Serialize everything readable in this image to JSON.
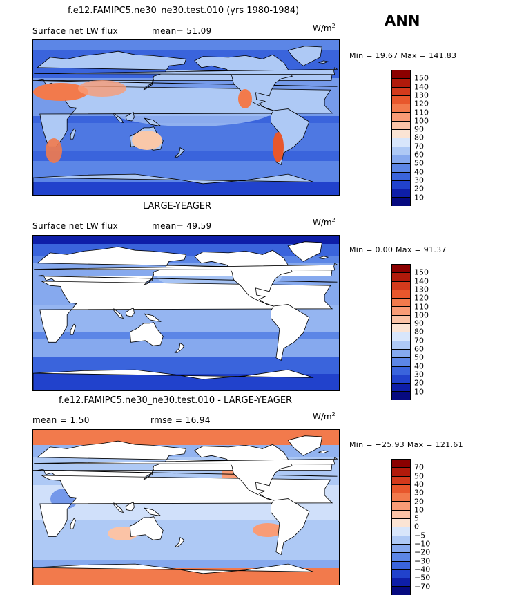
{
  "season": "ANN",
  "panels": [
    {
      "title": "f.e12.FAMIPC5.ne30_ne30.test.010 (yrs 1980-1984)",
      "sub_left": "Surface net LW flux",
      "sub_right": "mean=  51.09",
      "units": "W/m",
      "units_sup": "2",
      "minmax": "Min =  19.67 Max = 141.83",
      "legend_labels": [
        "150",
        "140",
        "130",
        "120",
        "110",
        "100",
        "90",
        "80",
        "70",
        "60",
        "50",
        "40",
        "30",
        "20",
        "10"
      ],
      "legend_colors": [
        "#8b0000",
        "#b11a0b",
        "#d33a1c",
        "#e8572c",
        "#f27a4c",
        "#f99c76",
        "#fbc3a6",
        "#fbe4d4",
        "#d8e6fb",
        "#aec9f5",
        "#86a9ee",
        "#5c86e6",
        "#3a64dc",
        "#2142cc",
        "#0e1ea8",
        "#060a80"
      ],
      "fill_mode": "model"
    },
    {
      "title": "LARGE-YEAGER",
      "sub_left": "Surface net LW flux",
      "sub_right": "mean=  49.59",
      "units": "W/m",
      "units_sup": "2",
      "minmax": "Min =   0.00 Max =  91.37",
      "legend_labels": [
        "150",
        "140",
        "130",
        "120",
        "110",
        "100",
        "90",
        "80",
        "70",
        "60",
        "50",
        "40",
        "30",
        "20",
        "10"
      ],
      "legend_colors": [
        "#8b0000",
        "#b11a0b",
        "#d33a1c",
        "#e8572c",
        "#f27a4c",
        "#f99c76",
        "#fbc3a6",
        "#fbe4d4",
        "#d8e6fb",
        "#aec9f5",
        "#86a9ee",
        "#5c86e6",
        "#3a64dc",
        "#2142cc",
        "#0e1ea8",
        "#060a80"
      ],
      "fill_mode": "obs"
    },
    {
      "title": "f.e12.FAMIPC5.ne30_ne30.test.010 - LARGE-YEAGER",
      "sub_left": "mean =    1.50",
      "sub_right": "rmse =   16.94",
      "units": "W/m",
      "units_sup": "2",
      "minmax": "Min = −25.93 Max = 121.61",
      "legend_labels": [
        "70",
        "50",
        "40",
        "30",
        "20",
        "10",
        "5",
        "0",
        "−5",
        "−10",
        "−20",
        "−30",
        "−40",
        "−50",
        "−70"
      ],
      "legend_colors": [
        "#8b0000",
        "#b11a0b",
        "#d33a1c",
        "#e8572c",
        "#f27a4c",
        "#f99c76",
        "#fbc3a6",
        "#fbe4d4",
        "#d8e6fb",
        "#aec9f5",
        "#86a9ee",
        "#5c86e6",
        "#3a64dc",
        "#2142cc",
        "#0e1ea8",
        "#060a80"
      ],
      "fill_mode": "diff"
    }
  ]
}
